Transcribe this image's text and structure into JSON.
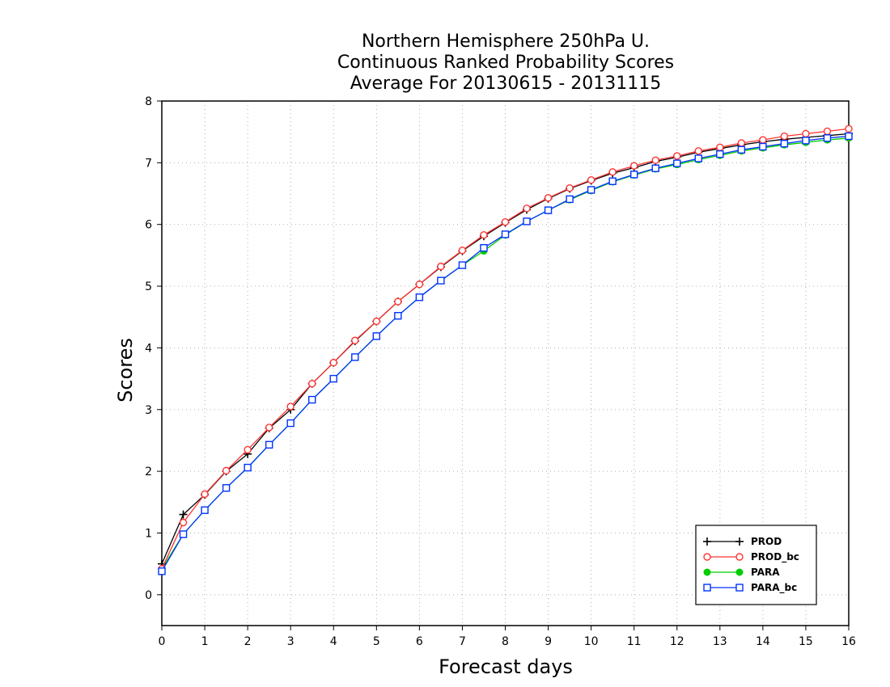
{
  "chart_data": {
    "type": "line",
    "title_lines": [
      "Northern Hemisphere 250hPa U.",
      "Continuous Ranked Probability Scores",
      "Average For 20130615 - 20131115"
    ],
    "xlabel": "Forecast days",
    "ylabel": "Scores",
    "xlim": [
      0,
      16
    ],
    "ylim": [
      -0.5,
      8
    ],
    "x_ticks": [
      0,
      1,
      2,
      3,
      4,
      5,
      6,
      7,
      8,
      9,
      10,
      11,
      12,
      13,
      14,
      15,
      16
    ],
    "y_ticks": [
      0,
      1,
      2,
      3,
      4,
      5,
      6,
      7,
      8
    ],
    "grid": true,
    "legend_position": "bottom-right",
    "x": [
      0,
      0.5,
      1,
      1.5,
      2,
      2.5,
      3,
      3.5,
      4,
      4.5,
      5,
      5.5,
      6,
      6.5,
      7,
      7.5,
      8,
      8.5,
      9,
      9.5,
      10,
      10.5,
      11,
      11.5,
      12,
      12.5,
      13,
      13.5,
      14,
      14.5,
      15,
      15.5,
      16
    ],
    "series": [
      {
        "name": "PROD",
        "color": "#000000",
        "marker": "plus",
        "values": [
          0.5,
          1.3,
          1.62,
          2.0,
          2.28,
          2.7,
          3.0,
          3.42,
          3.76,
          4.11,
          4.43,
          4.75,
          5.03,
          5.31,
          5.57,
          5.81,
          6.03,
          6.24,
          6.42,
          6.58,
          6.71,
          6.83,
          6.92,
          7.02,
          7.09,
          7.17,
          7.23,
          7.29,
          7.34,
          7.38,
          7.41,
          7.44,
          7.47
        ]
      },
      {
        "name": "PROD_bc",
        "color": "#ff3333",
        "marker": "circle-open",
        "values": [
          0.42,
          1.17,
          1.63,
          2.01,
          2.35,
          2.71,
          3.05,
          3.42,
          3.76,
          4.12,
          4.43,
          4.75,
          5.03,
          5.32,
          5.58,
          5.83,
          6.04,
          6.26,
          6.43,
          6.59,
          6.72,
          6.85,
          6.95,
          7.04,
          7.11,
          7.19,
          7.25,
          7.32,
          7.37,
          7.43,
          7.47,
          7.51,
          7.55
        ]
      },
      {
        "name": "PARA",
        "color": "#00cc00",
        "marker": "circle-filled",
        "values": [
          0.42,
          0.98,
          1.37,
          1.73,
          2.06,
          2.43,
          2.78,
          3.16,
          3.5,
          3.85,
          4.19,
          4.52,
          4.82,
          5.09,
          5.34,
          5.57,
          5.83,
          6.05,
          6.23,
          6.4,
          6.55,
          6.69,
          6.8,
          6.9,
          6.97,
          7.05,
          7.12,
          7.19,
          7.24,
          7.29,
          7.33,
          7.37,
          7.4
        ]
      },
      {
        "name": "PARA_bc",
        "color": "#0033ff",
        "marker": "square-open",
        "values": [
          0.38,
          0.98,
          1.37,
          1.73,
          2.06,
          2.43,
          2.78,
          3.16,
          3.5,
          3.85,
          4.19,
          4.52,
          4.82,
          5.09,
          5.34,
          5.62,
          5.84,
          6.05,
          6.23,
          6.41,
          6.56,
          6.7,
          6.81,
          6.91,
          6.99,
          7.07,
          7.14,
          7.21,
          7.26,
          7.31,
          7.36,
          7.4,
          7.43
        ]
      }
    ]
  }
}
